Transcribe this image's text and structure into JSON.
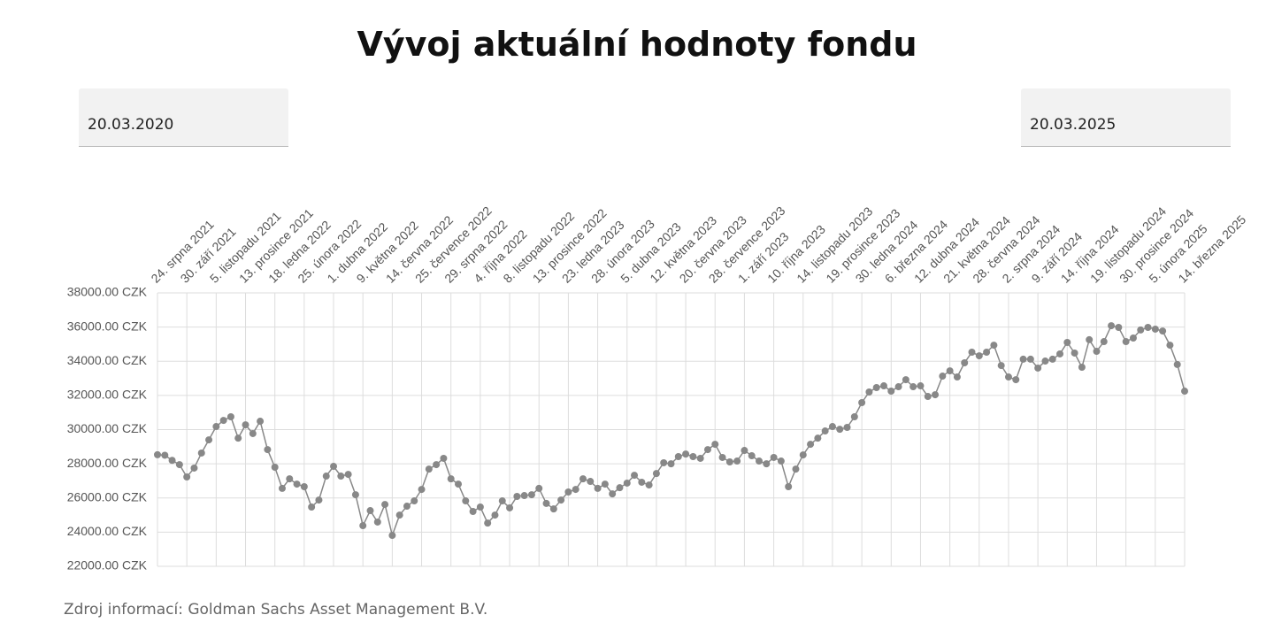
{
  "date_from": "20.03.2020",
  "date_to": "20.03.2025",
  "source": "Zdroj informací: Goldman Sachs Asset Management B.V.",
  "chart_data": {
    "type": "line",
    "title": "Vývoj aktuální hodnoty fondu",
    "color": "#888888",
    "grid": true,
    "categories": [
      "24. srpna 2021",
      null,
      null,
      null,
      "30. září 2021",
      null,
      null,
      null,
      "5. listopadu 2021",
      null,
      null,
      null,
      "13. prosince 2021",
      null,
      null,
      null,
      "18. ledna 2022",
      null,
      null,
      null,
      "25. února 2022",
      null,
      null,
      null,
      "1. dubna 2022",
      null,
      null,
      null,
      "9. května 2022",
      null,
      null,
      null,
      "14. června 2022",
      null,
      null,
      null,
      "25. července 2022",
      null,
      null,
      null,
      "29. srpna 2022",
      null,
      null,
      null,
      "4. října 2022",
      null,
      null,
      null,
      "8. listopadu 2022",
      null,
      null,
      null,
      "13. prosince 2022",
      null,
      null,
      null,
      "23. ledna 2023",
      null,
      null,
      null,
      "28. února 2023",
      null,
      null,
      null,
      "5. dubna 2023",
      null,
      null,
      null,
      "12. května 2023",
      null,
      null,
      null,
      "20. června 2023",
      null,
      null,
      null,
      "28. července 2023",
      null,
      null,
      null,
      "1. září 2023",
      null,
      null,
      null,
      "10. října 2023",
      null,
      null,
      null,
      "14. listopadu 2023",
      null,
      null,
      null,
      "19. prosince 2023",
      null,
      null,
      null,
      "30. ledna 2024",
      null,
      null,
      null,
      "6. března 2024",
      null,
      null,
      null,
      "12. dubna 2024",
      null,
      null,
      null,
      "21. května 2024",
      null,
      null,
      null,
      "28. června 2024",
      null,
      null,
      null,
      "2. srpna 2024",
      null,
      null,
      null,
      "9. září 2024",
      null,
      null,
      null,
      "14. října 2024",
      null,
      null,
      null,
      "19. listopadu 2024",
      null,
      null,
      null,
      "30. prosince 2024",
      null,
      null,
      null,
      "5. února 2025",
      null,
      null,
      null,
      "14. března 2025"
    ],
    "values": [
      28530,
      28500,
      28200,
      27950,
      27230,
      27750,
      28630,
      29400,
      30180,
      30540,
      30750,
      29500,
      30280,
      29770,
      30490,
      28830,
      27800,
      26560,
      27120,
      26810,
      26660,
      25470,
      25880,
      27280,
      27850,
      27280,
      27380,
      26190,
      24380,
      25260,
      24590,
      25620,
      23810,
      25000,
      25520,
      25830,
      26500,
      27690,
      27950,
      28320,
      27120,
      26810,
      25830,
      25210,
      25470,
      24530,
      25000,
      25830,
      25420,
      26090,
      26140,
      26190,
      26560,
      25680,
      25360,
      25880,
      26350,
      26500,
      27120,
      26970,
      26560,
      26810,
      26240,
      26600,
      26870,
      27330,
      26920,
      26760,
      27430,
      28060,
      28000,
      28420,
      28570,
      28420,
      28320,
      28830,
      29140,
      28370,
      28110,
      28160,
      28780,
      28470,
      28160,
      28000,
      28370,
      28160,
      26660,
      27690,
      28520,
      29140,
      29500,
      29920,
      30180,
      30020,
      30130,
      30750,
      31580,
      32200,
      32460,
      32560,
      32250,
      32510,
      32920,
      32510,
      32560,
      31940,
      32040,
      33130,
      33440,
      33080,
      33910,
      34530,
      34320,
      34530,
      34940,
      33750,
      33080,
      32920,
      34120,
      34120,
      33600,
      34010,
      34120,
      34430,
      35100,
      34480,
      33650,
      35260,
      34580,
      35150,
      36080,
      35980,
      35150,
      35360,
      35830,
      35980,
      35880,
      35770,
      34940,
      33810,
      32250
    ],
    "ylim": [
      22000,
      38000
    ],
    "yticks": [
      {
        "value": 22000,
        "label": "22000.00 CZK"
      },
      {
        "value": 24000,
        "label": "24000.00 CZK"
      },
      {
        "value": 26000,
        "label": "26000.00 CZK"
      },
      {
        "value": 28000,
        "label": "28000.00 CZK"
      },
      {
        "value": 30000,
        "label": "30000.00 CZK"
      },
      {
        "value": 32000,
        "label": "32000.00 CZK"
      },
      {
        "value": 34000,
        "label": "34000.00 CZK"
      },
      {
        "value": 36000,
        "label": "36000.00 CZK"
      },
      {
        "value": 38000,
        "label": "38000.00 CZK"
      }
    ]
  }
}
